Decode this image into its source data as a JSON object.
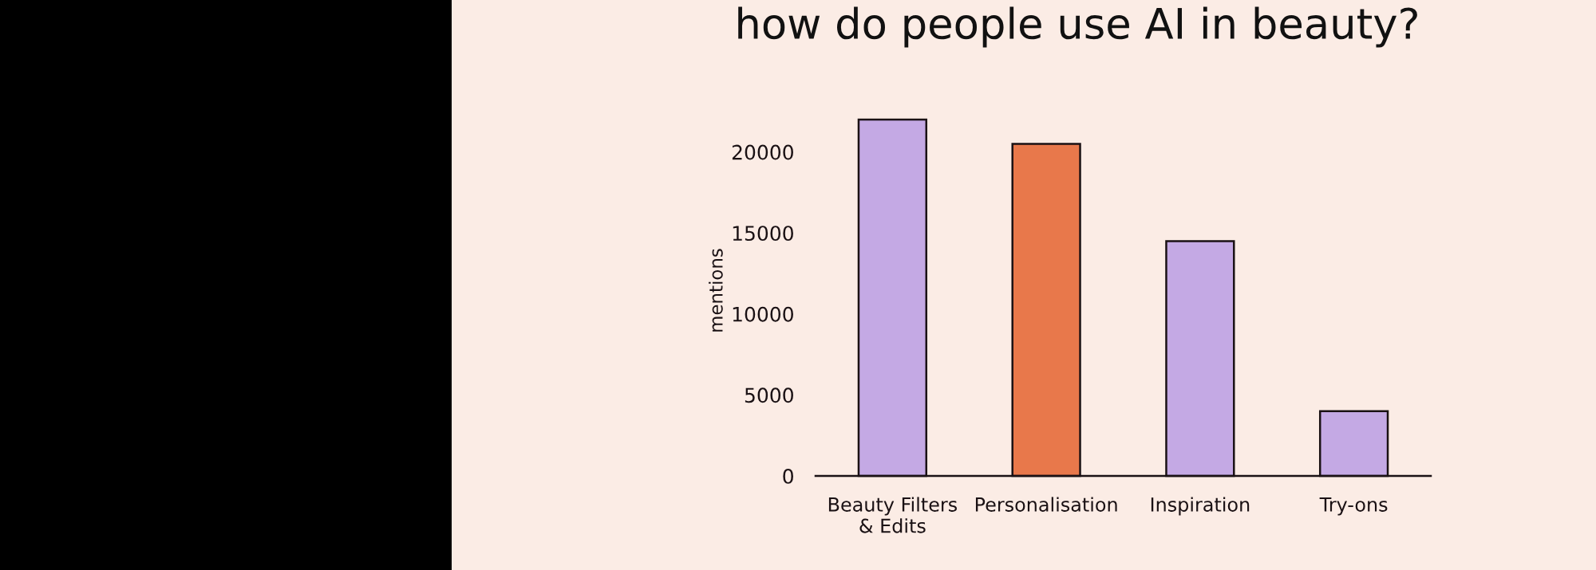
{
  "chart_data": {
    "type": "bar",
    "title": "how do people use AI in beauty?",
    "ylabel": "mentions",
    "categories": [
      "Beauty Filters\n& Edits",
      "Personalisation",
      "Inspiration",
      "Try-ons"
    ],
    "values": [
      22000,
      20500,
      14500,
      4000
    ],
    "colors": [
      "#c4a9e4",
      "#e8784b",
      "#c4a9e4",
      "#c4a9e4"
    ],
    "ylim": [
      0,
      22000
    ],
    "yticks": [
      0,
      5000,
      10000,
      15000,
      20000
    ]
  }
}
